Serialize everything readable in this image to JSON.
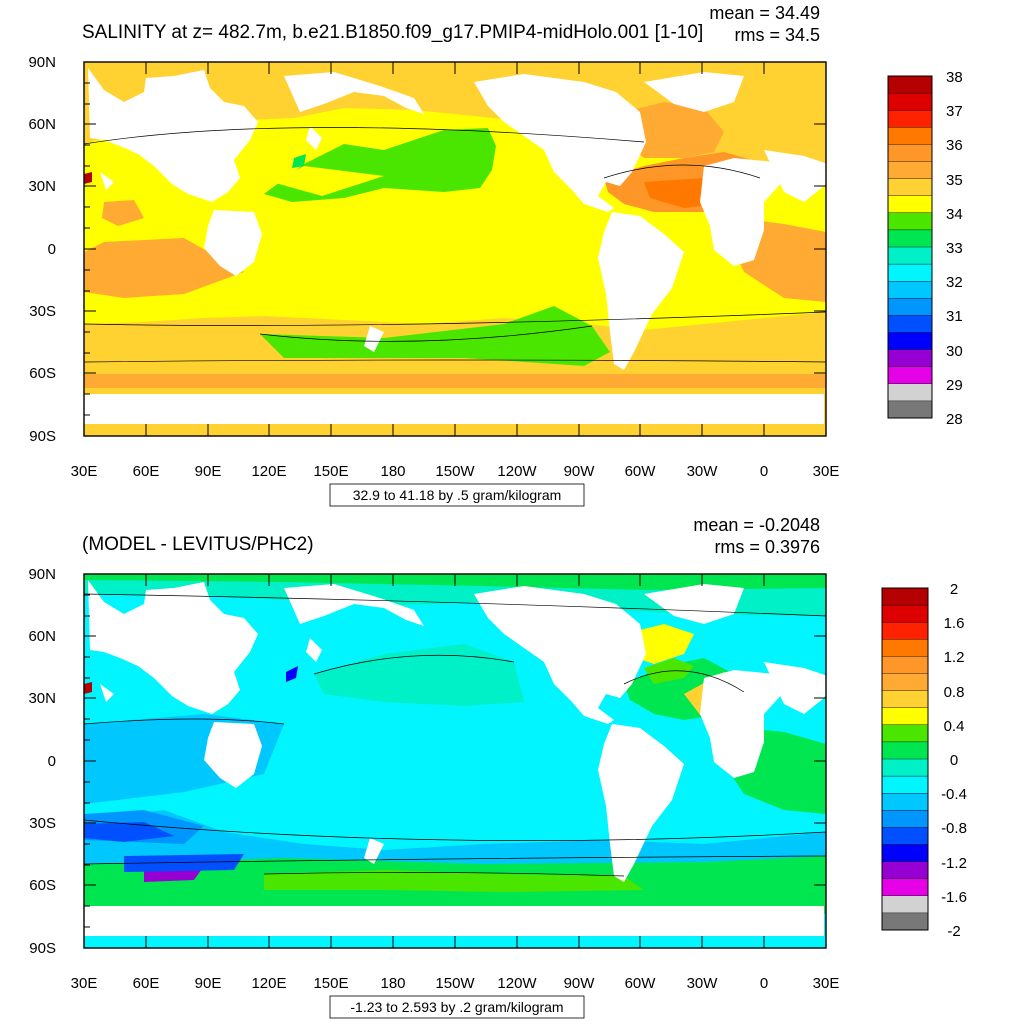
{
  "panels": [
    {
      "title": "SALINITY at z= 482.7m, b.e21.B1850.f09_g17.PMIP4-midHolo.001 [1-10]",
      "stats": {
        "mean": "mean = 34.49",
        "rms": "rms = 34.5"
      },
      "ylabels": [
        "90N",
        "60N",
        "30N",
        "0",
        "30S",
        "60S",
        "90S"
      ],
      "xlabels": [
        "30E",
        "60E",
        "90E",
        "120E",
        "150E",
        "180",
        "150W",
        "120W",
        "90W",
        "60W",
        "30W",
        "0",
        "30E"
      ],
      "caption": "32.9 to 41.18 by .5 gram/kilogram",
      "colorbar": {
        "colors": [
          "#b40000",
          "#dc0000",
          "#ff2200",
          "#ff7800",
          "#ff9628",
          "#ffaa32",
          "#ffd232",
          "#ffff00",
          "#4be600",
          "#00e650",
          "#00f0c8",
          "#00f5ff",
          "#00c8ff",
          "#0096ff",
          "#0050ff",
          "#0000ff",
          "#9600d2",
          "#e600e6",
          "#d2d2d2",
          "#787878"
        ],
        "labels": [
          "38",
          "37",
          "36",
          "35",
          "34",
          "33",
          "32",
          "31",
          "30",
          "29",
          "28"
        ]
      }
    },
    {
      "title": "(MODEL - LEVITUS/PHC2)",
      "stats": {
        "mean": "mean = -0.2048",
        "rms": "rms = 0.3976"
      },
      "ylabels": [
        "90N",
        "60N",
        "30N",
        "0",
        "30S",
        "60S",
        "90S"
      ],
      "xlabels": [
        "30E",
        "60E",
        "90E",
        "120E",
        "150E",
        "180",
        "150W",
        "120W",
        "90W",
        "60W",
        "30W",
        "0",
        "30E"
      ],
      "caption": "-1.23 to 2.593 by .2 gram/kilogram",
      "colorbar": {
        "colors": [
          "#b40000",
          "#dc0000",
          "#ff2200",
          "#ff7800",
          "#ff9628",
          "#ffaa32",
          "#ffd232",
          "#ffff00",
          "#4be600",
          "#00e650",
          "#00f0c8",
          "#00f5ff",
          "#00c8ff",
          "#0096ff",
          "#0050ff",
          "#0000ff",
          "#9600d2",
          "#e600e6",
          "#d2d2d2",
          "#787878"
        ],
        "labels": [
          "2",
          "1.6",
          "1.2",
          "0.8",
          "0.4",
          "0",
          "-0.4",
          "-0.8",
          "-1.2",
          "-1.6",
          "-2"
        ]
      }
    }
  ]
}
